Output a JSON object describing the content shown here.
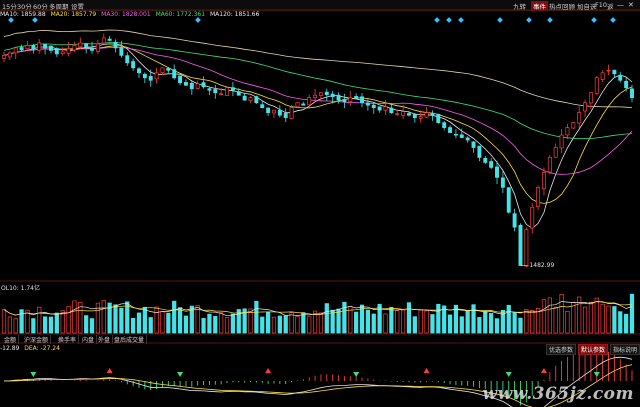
{
  "toolbar": {
    "periods": [
      "15分",
      "30分",
      "60分",
      "多周期",
      "设置"
    ],
    "right_tabs": [
      "九转",
      "事件",
      "热点回顾",
      "加自选",
      "F10",
      "返"
    ],
    "active_right": 1
  },
  "ma_line": [
    {
      "label": "MA10: 1859.88",
      "color": "#e8e8e8"
    },
    {
      "label": "MA20: 1857.79",
      "color": "#ffdf3a"
    },
    {
      "label": "MA30: 1828.001",
      "color": "#ff5af0"
    },
    {
      "label": "MA60: 1772.361",
      "color": "#3ae07a"
    },
    {
      "label": "MA120: 1851.66",
      "color": "#e8e8e8"
    }
  ],
  "min_price_label": "1482.99",
  "volume_label": "OL10: 1.74亿",
  "indicator_tabs": [
    "金额",
    "沪深金额",
    "换手率",
    "内盘",
    "外盘",
    "盘后成交量"
  ],
  "macd_label": {
    "dif": "-12.89",
    "dea": "DEA: -27.24"
  },
  "macd_buttons": [
    "优选参数",
    "默认参数",
    "指标说明"
  ],
  "macd_active": 1,
  "watermark": "www.365jz.com",
  "colors": {
    "up": "#ff3b3b",
    "down": "#44e3e8",
    "bg": "#000000",
    "accent": "#7a1010"
  },
  "chart_data": {
    "type": "candlestick",
    "price_series_close": [
      1905,
      1910,
      1920,
      1916,
      1925,
      1918,
      1930,
      1920,
      1915,
      1908,
      1912,
      1918,
      1925,
      1930,
      1922,
      1915,
      1928,
      1940,
      1935,
      1920,
      1905,
      1890,
      1880,
      1870,
      1860,
      1855,
      1870,
      1880,
      1875,
      1860,
      1850,
      1845,
      1838,
      1848,
      1842,
      1835,
      1830,
      1828,
      1840,
      1835,
      1825,
      1815,
      1820,
      1810,
      1800,
      1790,
      1795,
      1785,
      1780,
      1800,
      1810,
      1805,
      1820,
      1825,
      1830,
      1826,
      1822,
      1815,
      1812,
      1820,
      1818,
      1810,
      1805,
      1800,
      1795,
      1802,
      1790,
      1788,
      1792,
      1785,
      1780,
      1782,
      1790,
      1786,
      1770,
      1760,
      1750,
      1745,
      1740,
      1735,
      1720,
      1700,
      1690,
      1680,
      1660,
      1640,
      1590,
      1560,
      1482.99,
      1555,
      1600,
      1640,
      1670,
      1700,
      1720,
      1745,
      1760,
      1770,
      1790,
      1810,
      1830,
      1860,
      1870,
      1875,
      1868,
      1855,
      1840,
      1820
    ],
    "min_low": 1482.99,
    "ma_series": [
      "MA10",
      "MA20",
      "MA30",
      "MA60",
      "MA120"
    ]
  }
}
